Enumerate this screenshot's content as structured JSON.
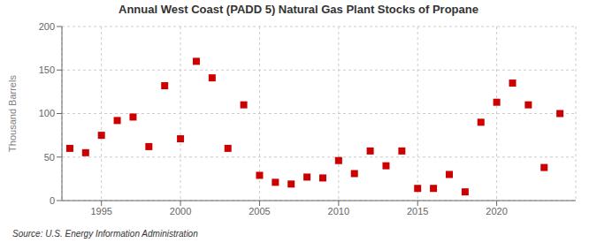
{
  "chart_data": {
    "type": "scatter",
    "title": "Annual West Coast (PADD 5) Natural Gas Plant Stocks of Propane",
    "y_label": "Thousand Barrels",
    "annotations": [
      "Source: U.S. Energy Information Administration"
    ],
    "x": [
      1993,
      1994,
      1995,
      1996,
      1997,
      1998,
      1999,
      2000,
      2001,
      2002,
      2003,
      2004,
      2005,
      2006,
      2007,
      2008,
      2009,
      2010,
      2011,
      2012,
      2013,
      2014,
      2015,
      2016,
      2017,
      2018,
      2019,
      2020,
      2021,
      2022,
      2023,
      2024
    ],
    "values": [
      60,
      55,
      75,
      92,
      96,
      62,
      132,
      71,
      160,
      141,
      60,
      110,
      29,
      21,
      19,
      27,
      26,
      46,
      31,
      57,
      40,
      57,
      14,
      14,
      30,
      10,
      90,
      113,
      135,
      110,
      38,
      100
    ],
    "color": "#cc0000",
    "marker": "square",
    "xlim": [
      1992.5,
      2025
    ],
    "ylim": [
      0,
      200
    ],
    "xticks": [
      1995,
      2000,
      2005,
      2010,
      2015,
      2020
    ],
    "yticks": [
      0,
      50,
      100,
      150,
      200
    ],
    "grid": true
  }
}
